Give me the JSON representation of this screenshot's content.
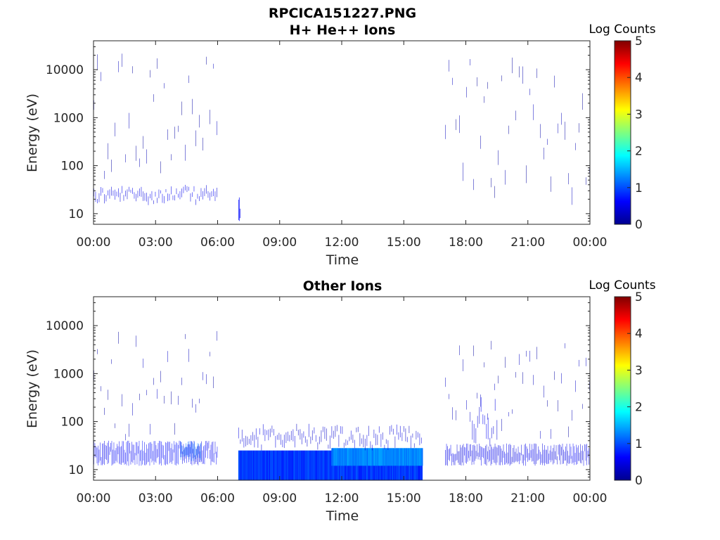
{
  "chart_data": [
    {
      "type": "heatmap",
      "title": "RPCICA151227.PNG",
      "subtitle": "H+ He++ Ions",
      "xlabel": "Time",
      "ylabel": "Energy (eV)",
      "y_scale": "log",
      "ylim": [
        6,
        40000
      ],
      "xlim_hours": [
        0,
        24
      ],
      "xticks": [
        "00:00",
        "03:00",
        "06:00",
        "09:00",
        "12:00",
        "15:00",
        "18:00",
        "21:00",
        "00:00"
      ],
      "yticks": [
        "10",
        "100",
        "1000",
        "10000"
      ],
      "colorbar": {
        "label": "Log Counts",
        "ticks": [
          "0",
          "1",
          "2",
          "3",
          "4",
          "5"
        ],
        "range": [
          0,
          5
        ]
      },
      "grid": false,
      "regions": [
        {
          "t_start": 0.0,
          "t_end": 6.0,
          "e_low": 15,
          "e_high": 40,
          "log_counts": 0.5,
          "density": "scattered"
        },
        {
          "t_start": 0.0,
          "t_end": 6.0,
          "e_low": 40,
          "e_high": 25000,
          "log_counts": 0.15,
          "density": "sparse"
        },
        {
          "t_start": 7.0,
          "t_end": 7.1,
          "e_low": 7,
          "e_high": 22,
          "log_counts": 0.6,
          "density": "isolated"
        },
        {
          "t_start": 17.0,
          "t_end": 24.0,
          "e_low": 12,
          "e_high": 20000,
          "log_counts": 0.15,
          "density": "sparse"
        }
      ]
    },
    {
      "type": "heatmap",
      "title": "Other Ions",
      "xlabel": "Time",
      "ylabel": "Energy (eV)",
      "y_scale": "log",
      "ylim": [
        6,
        40000
      ],
      "xlim_hours": [
        0,
        24
      ],
      "xticks": [
        "00:00",
        "03:00",
        "06:00",
        "09:00",
        "12:00",
        "15:00",
        "18:00",
        "21:00",
        "00:00"
      ],
      "yticks": [
        "10",
        "100",
        "1000",
        "10000"
      ],
      "colorbar": {
        "label": "Log Counts",
        "ticks": [
          "0",
          "1",
          "2",
          "3",
          "4",
          "5"
        ],
        "range": [
          0,
          5
        ]
      },
      "grid": false,
      "regions": [
        {
          "t_start": 0.0,
          "t_end": 6.0,
          "e_low": 12,
          "e_high": 40,
          "log_counts": 0.6,
          "density": "dense-striped"
        },
        {
          "t_start": 4.2,
          "t_end": 5.2,
          "e_low": 15,
          "e_high": 40,
          "log_counts": 1.1,
          "density": "dense-striped"
        },
        {
          "t_start": 0.0,
          "t_end": 6.0,
          "e_low": 40,
          "e_high": 8000,
          "log_counts": 0.2,
          "density": "sparse"
        },
        {
          "t_start": 7.0,
          "t_end": 15.9,
          "e_low": 6,
          "e_high": 25,
          "log_counts": 0.9,
          "density": "continuous"
        },
        {
          "t_start": 11.5,
          "t_end": 15.9,
          "e_low": 12,
          "e_high": 28,
          "log_counts": 1.3,
          "density": "continuous"
        },
        {
          "t_start": 7.0,
          "t_end": 15.9,
          "e_low": 25,
          "e_high": 90,
          "log_counts": 0.4,
          "density": "scattered"
        },
        {
          "t_start": 17.0,
          "t_end": 24.0,
          "e_low": 12,
          "e_high": 35,
          "log_counts": 0.5,
          "density": "dense-striped"
        },
        {
          "t_start": 17.0,
          "t_end": 24.0,
          "e_low": 35,
          "e_high": 5000,
          "log_counts": 0.2,
          "density": "sparse"
        },
        {
          "t_start": 18.3,
          "t_end": 19.5,
          "e_low": 30,
          "e_high": 350,
          "log_counts": 0.5,
          "density": "scattered"
        }
      ]
    }
  ]
}
